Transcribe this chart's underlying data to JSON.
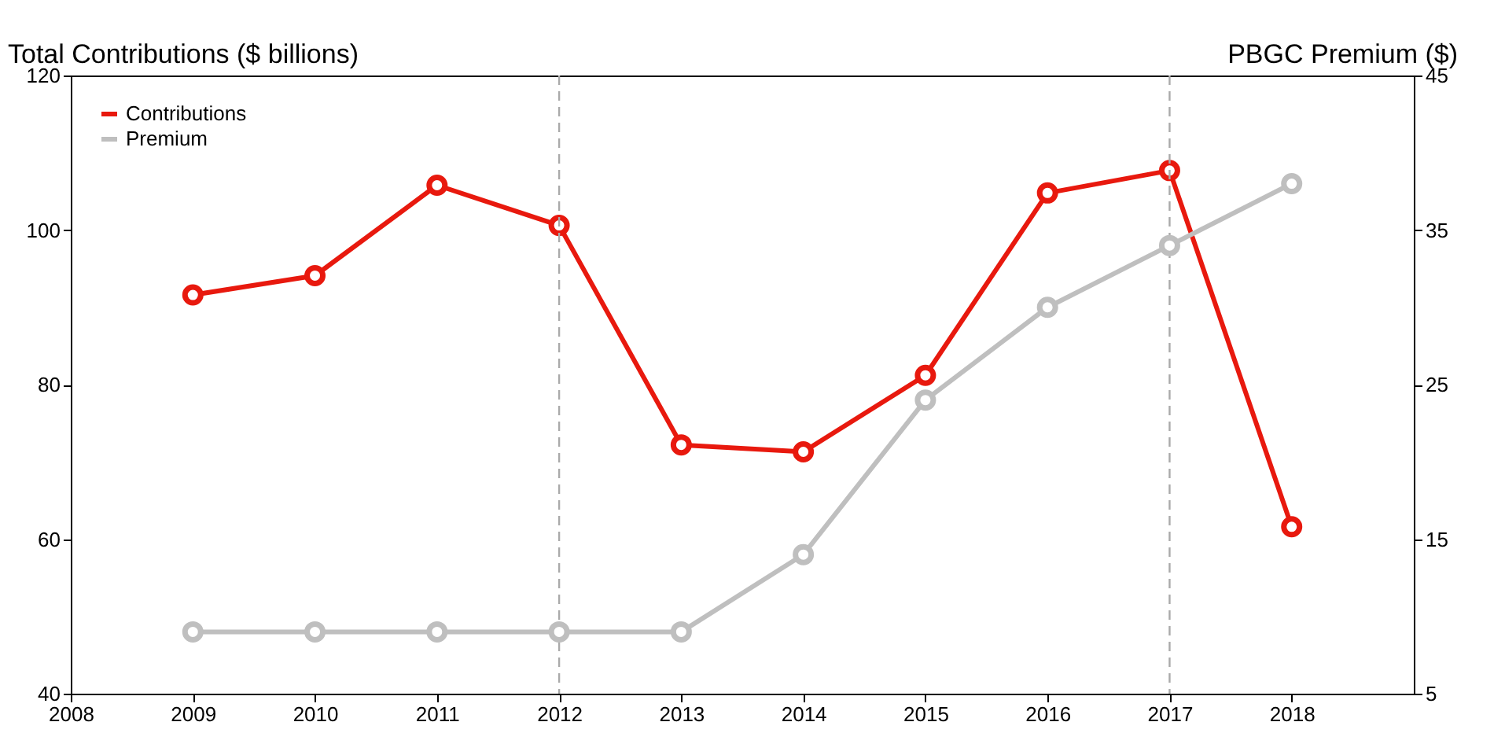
{
  "chart_data": {
    "type": "line",
    "ylabel": "Total Contributions ($ billions)",
    "y2label": "PBGC Premium ($)",
    "x": [
      2009,
      2010,
      2011,
      2012,
      2013,
      2014,
      2015,
      2016,
      2017,
      2018
    ],
    "series": [
      {
        "name": "Contributions",
        "color": "#e8190e",
        "values": [
          91.6,
          94.1,
          105.8,
          100.6,
          72.2,
          71.3,
          81.2,
          104.8,
          107.7,
          61.6
        ]
      },
      {
        "name": "Premium",
        "color": "#bfbfbf",
        "axis": "y2",
        "values": [
          9,
          9,
          9,
          9,
          9,
          14,
          24,
          30,
          34,
          38
        ]
      }
    ],
    "xlim": [
      2008,
      2019
    ],
    "xticks": [
      2008,
      2009,
      2010,
      2011,
      2012,
      2013,
      2014,
      2015,
      2016,
      2017,
      2018
    ],
    "ylim": [
      40,
      120
    ],
    "yticks": [
      40,
      60,
      80,
      100,
      120
    ],
    "y2lim": [
      5,
      45
    ],
    "y2ticks": [
      5,
      15,
      25,
      35,
      45
    ],
    "ref_lines": [
      {
        "axis": "x",
        "value": 2012,
        "color": "#aaaaaa",
        "line_style": "dashed"
      },
      {
        "axis": "x",
        "value": 2017,
        "color": "#aaaaaa",
        "line_style": "dashed"
      }
    ],
    "marker": "circle",
    "line_style": "solid",
    "legend": "top left",
    "grid": false
  }
}
